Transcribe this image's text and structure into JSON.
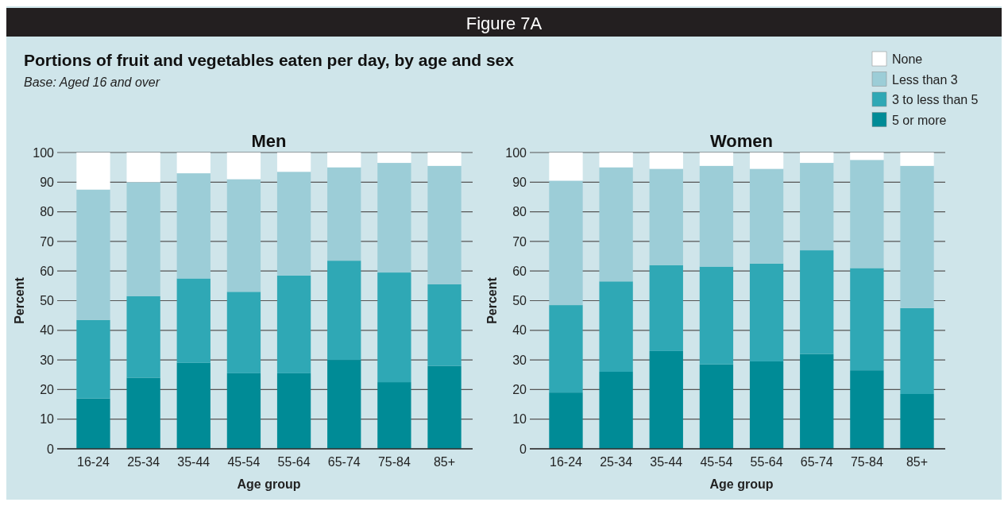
{
  "chart_data": [
    {
      "type": "bar",
      "title": "Men",
      "annotations": [
        "Figure 7A",
        "Portions of fruit and vegetables eaten per day, by age and sex",
        "Base: Aged 16 and over"
      ],
      "xlabel": "Age group",
      "ylabel": "Percent",
      "stacked": true,
      "categories": [
        "16-24",
        "25-34",
        "35-44",
        "45-54",
        "55-64",
        "65-74",
        "75-84",
        "85+"
      ],
      "ylim": [
        0,
        100
      ],
      "yticks": [
        0,
        10,
        20,
        30,
        40,
        50,
        60,
        70,
        80,
        90,
        100
      ],
      "grid": "y",
      "legend": "top right",
      "series": [
        {
          "name": "5 or more",
          "color": "#008b96",
          "values": [
            17,
            24,
            29,
            25.5,
            25.5,
            30,
            22.5,
            28
          ]
        },
        {
          "name": "3 to less than 5",
          "color": "#2fa8b5",
          "values": [
            26.5,
            27.5,
            28.5,
            27.5,
            33,
            33.5,
            37,
            27.5
          ]
        },
        {
          "name": "Less than 3",
          "color": "#9ccdd7",
          "values": [
            44,
            38.5,
            35.5,
            38,
            35,
            31.5,
            37,
            40
          ]
        },
        {
          "name": "None",
          "color": "#ffffff",
          "values": [
            12.5,
            10,
            7,
            9,
            6.5,
            5,
            3.5,
            4.5
          ]
        }
      ]
    },
    {
      "type": "bar",
      "title": "Women",
      "xlabel": "Age group",
      "ylabel": "Percent",
      "stacked": true,
      "categories": [
        "16-24",
        "25-34",
        "35-44",
        "45-54",
        "55-64",
        "65-74",
        "75-84",
        "85+"
      ],
      "ylim": [
        0,
        100
      ],
      "yticks": [
        0,
        10,
        20,
        30,
        40,
        50,
        60,
        70,
        80,
        90,
        100
      ],
      "grid": "y",
      "series": [
        {
          "color": "#008b96",
          "values": [
            19,
            26,
            33,
            28.5,
            29.5,
            32,
            26.5,
            18.5
          ]
        },
        {
          "color": "#2fa8b5",
          "values": [
            29.5,
            30.5,
            29,
            33,
            33,
            35,
            34.5,
            29
          ]
        },
        {
          "color": "#9ccdd7",
          "values": [
            42,
            38.5,
            32.5,
            34,
            32,
            29.5,
            36.5,
            48
          ]
        },
        {
          "color": "#ffffff",
          "values": [
            9.5,
            5,
            5.5,
            4.5,
            5.5,
            3.5,
            2.5,
            4.5
          ]
        }
      ]
    }
  ]
}
